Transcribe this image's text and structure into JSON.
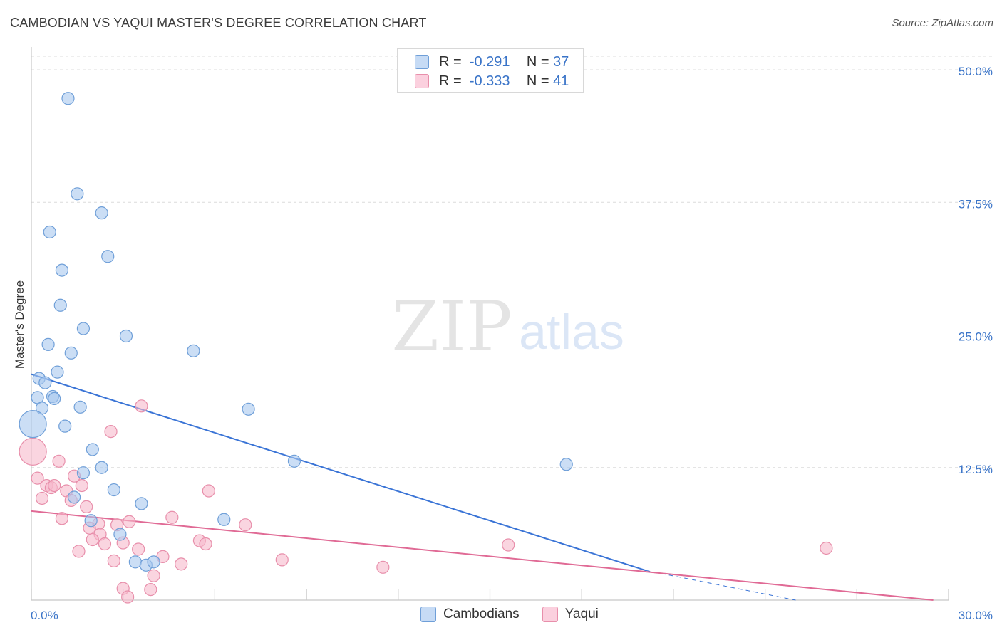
{
  "title": "CAMBODIAN VS YAQUI MASTER'S DEGREE CORRELATION CHART",
  "source": "Source: ZipAtlas.com",
  "watermark": {
    "zip": "ZIP",
    "atlas": "atlas"
  },
  "legend": {
    "r_label": "R =",
    "n_label": "N =",
    "cambodians": {
      "r": "-0.291",
      "n": "37"
    },
    "yaqui": {
      "r": "-0.333",
      "n": "41"
    }
  },
  "colors": {
    "cambodian_fill": "#a9c8ef",
    "cambodian_stroke": "#6f9fd8",
    "cambodian_line": "#3a74d6",
    "yaqui_fill": "#f6b9cc",
    "yaqui_stroke": "#e88fab",
    "yaqui_line": "#e06a95",
    "tick_text": "#3a74c8",
    "grid": "#dcdcdc"
  },
  "chart_data": {
    "type": "scatter",
    "title": "CAMBODIAN VS YAQUI MASTER'S DEGREE CORRELATION CHART",
    "xlabel": "",
    "ylabel": "Master's Degree",
    "xlim": [
      0,
      30
    ],
    "ylim": [
      0,
      50
    ],
    "x_tick_labels": [
      "0.0%",
      "30.0%"
    ],
    "y_ticks": [
      12.5,
      25,
      37.5,
      50
    ],
    "y_tick_labels": [
      "12.5%",
      "25.0%",
      "37.5%",
      "50.0%"
    ],
    "series": [
      {
        "name": "Cambodians",
        "r": -0.291,
        "n": 37,
        "trend": {
          "x0": 0,
          "y0": 21.3,
          "x1": 20.1,
          "y1": 2.8,
          "dash_x1": 25.0,
          "dash_y1": 0
        },
        "points": [
          {
            "x": 1.2,
            "y": 47.3
          },
          {
            "x": 1.5,
            "y": 38.3
          },
          {
            "x": 2.3,
            "y": 36.5
          },
          {
            "x": 0.6,
            "y": 34.7
          },
          {
            "x": 2.5,
            "y": 32.4
          },
          {
            "x": 1.0,
            "y": 31.1
          },
          {
            "x": 0.95,
            "y": 27.8
          },
          {
            "x": 1.7,
            "y": 25.6
          },
          {
            "x": 3.1,
            "y": 24.9
          },
          {
            "x": 0.55,
            "y": 24.1
          },
          {
            "x": 1.3,
            "y": 23.3
          },
          {
            "x": 5.3,
            "y": 23.5
          },
          {
            "x": 0.85,
            "y": 21.5
          },
          {
            "x": 0.25,
            "y": 20.9
          },
          {
            "x": 0.45,
            "y": 20.5
          },
          {
            "x": 0.2,
            "y": 19.1
          },
          {
            "x": 0.7,
            "y": 19.2
          },
          {
            "x": 0.75,
            "y": 19.0
          },
          {
            "x": 0.35,
            "y": 18.1
          },
          {
            "x": 1.6,
            "y": 18.2
          },
          {
            "x": 7.1,
            "y": 18.0
          },
          {
            "x": 0.05,
            "y": 16.6,
            "big": true
          },
          {
            "x": 1.1,
            "y": 16.4
          },
          {
            "x": 2.0,
            "y": 14.2
          },
          {
            "x": 8.6,
            "y": 13.1
          },
          {
            "x": 17.5,
            "y": 12.8
          },
          {
            "x": 2.3,
            "y": 12.5
          },
          {
            "x": 1.7,
            "y": 12.0
          },
          {
            "x": 2.7,
            "y": 10.4
          },
          {
            "x": 1.4,
            "y": 9.7
          },
          {
            "x": 3.6,
            "y": 9.1
          },
          {
            "x": 6.3,
            "y": 7.6
          },
          {
            "x": 1.95,
            "y": 7.5
          },
          {
            "x": 2.9,
            "y": 6.2
          },
          {
            "x": 3.4,
            "y": 3.6
          },
          {
            "x": 3.75,
            "y": 3.3
          },
          {
            "x": 4.0,
            "y": 3.6
          }
        ]
      },
      {
        "name": "Yaqui",
        "r": -0.333,
        "n": 41,
        "trend": {
          "x0": 0,
          "y0": 8.4,
          "x1": 29.5,
          "y1": 0
        },
        "points": [
          {
            "x": 0.05,
            "y": 14.0,
            "big": true
          },
          {
            "x": 3.6,
            "y": 18.3
          },
          {
            "x": 2.6,
            "y": 15.9
          },
          {
            "x": 0.9,
            "y": 13.1
          },
          {
            "x": 0.2,
            "y": 11.5
          },
          {
            "x": 1.4,
            "y": 11.7
          },
          {
            "x": 0.5,
            "y": 10.8
          },
          {
            "x": 0.65,
            "y": 10.6
          },
          {
            "x": 0.75,
            "y": 10.8
          },
          {
            "x": 1.15,
            "y": 10.3
          },
          {
            "x": 1.65,
            "y": 10.8
          },
          {
            "x": 5.8,
            "y": 10.3
          },
          {
            "x": 0.35,
            "y": 9.6
          },
          {
            "x": 1.3,
            "y": 9.4
          },
          {
            "x": 1.8,
            "y": 8.8
          },
          {
            "x": 1.0,
            "y": 7.7
          },
          {
            "x": 4.6,
            "y": 7.8
          },
          {
            "x": 3.2,
            "y": 7.4
          },
          {
            "x": 2.2,
            "y": 7.2
          },
          {
            "x": 2.8,
            "y": 7.1
          },
          {
            "x": 7.0,
            "y": 7.1
          },
          {
            "x": 1.9,
            "y": 6.8
          },
          {
            "x": 2.25,
            "y": 6.2
          },
          {
            "x": 2.0,
            "y": 5.7
          },
          {
            "x": 5.5,
            "y": 5.6
          },
          {
            "x": 2.4,
            "y": 5.3
          },
          {
            "x": 3.0,
            "y": 5.4
          },
          {
            "x": 5.7,
            "y": 5.3
          },
          {
            "x": 15.6,
            "y": 5.2
          },
          {
            "x": 26.0,
            "y": 4.9
          },
          {
            "x": 1.55,
            "y": 4.6
          },
          {
            "x": 3.5,
            "y": 4.8
          },
          {
            "x": 2.7,
            "y": 3.7
          },
          {
            "x": 4.3,
            "y": 4.1
          },
          {
            "x": 8.2,
            "y": 3.8
          },
          {
            "x": 4.9,
            "y": 3.4
          },
          {
            "x": 11.5,
            "y": 3.1
          },
          {
            "x": 4.0,
            "y": 2.3
          },
          {
            "x": 3.0,
            "y": 1.1
          },
          {
            "x": 3.9,
            "y": 1.0
          },
          {
            "x": 3.15,
            "y": 0.3
          }
        ]
      }
    ]
  }
}
